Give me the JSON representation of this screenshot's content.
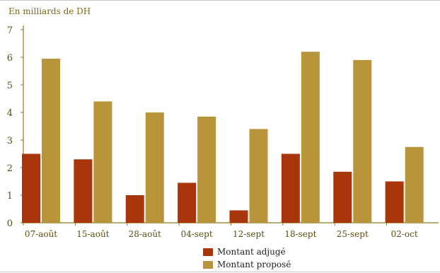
{
  "colors": {
    "adjuge": "#a8360a",
    "propose": "#b8953a",
    "axis": "#8a7a20",
    "tick_text": "#5a4f12"
  },
  "chart_data": {
    "type": "bar",
    "unit_label": "En milliards de DH",
    "categories": [
      "07-août",
      "15-août",
      "28-août",
      "04-sept",
      "12-sept",
      "18-sept",
      "25-sept",
      "02-oct"
    ],
    "series": [
      {
        "name": "Montant adjugé",
        "values": [
          2.5,
          2.3,
          1.0,
          1.45,
          0.45,
          2.5,
          1.85,
          1.5
        ]
      },
      {
        "name": "Montant proposé",
        "values": [
          5.95,
          4.4,
          4.0,
          3.85,
          3.4,
          6.2,
          5.9,
          2.75
        ]
      }
    ],
    "ylim": [
      0,
      7
    ],
    "yticks": [
      0,
      1,
      2,
      3,
      4,
      5,
      6,
      7
    ],
    "grid": false,
    "legend_position": "bottom-center"
  }
}
